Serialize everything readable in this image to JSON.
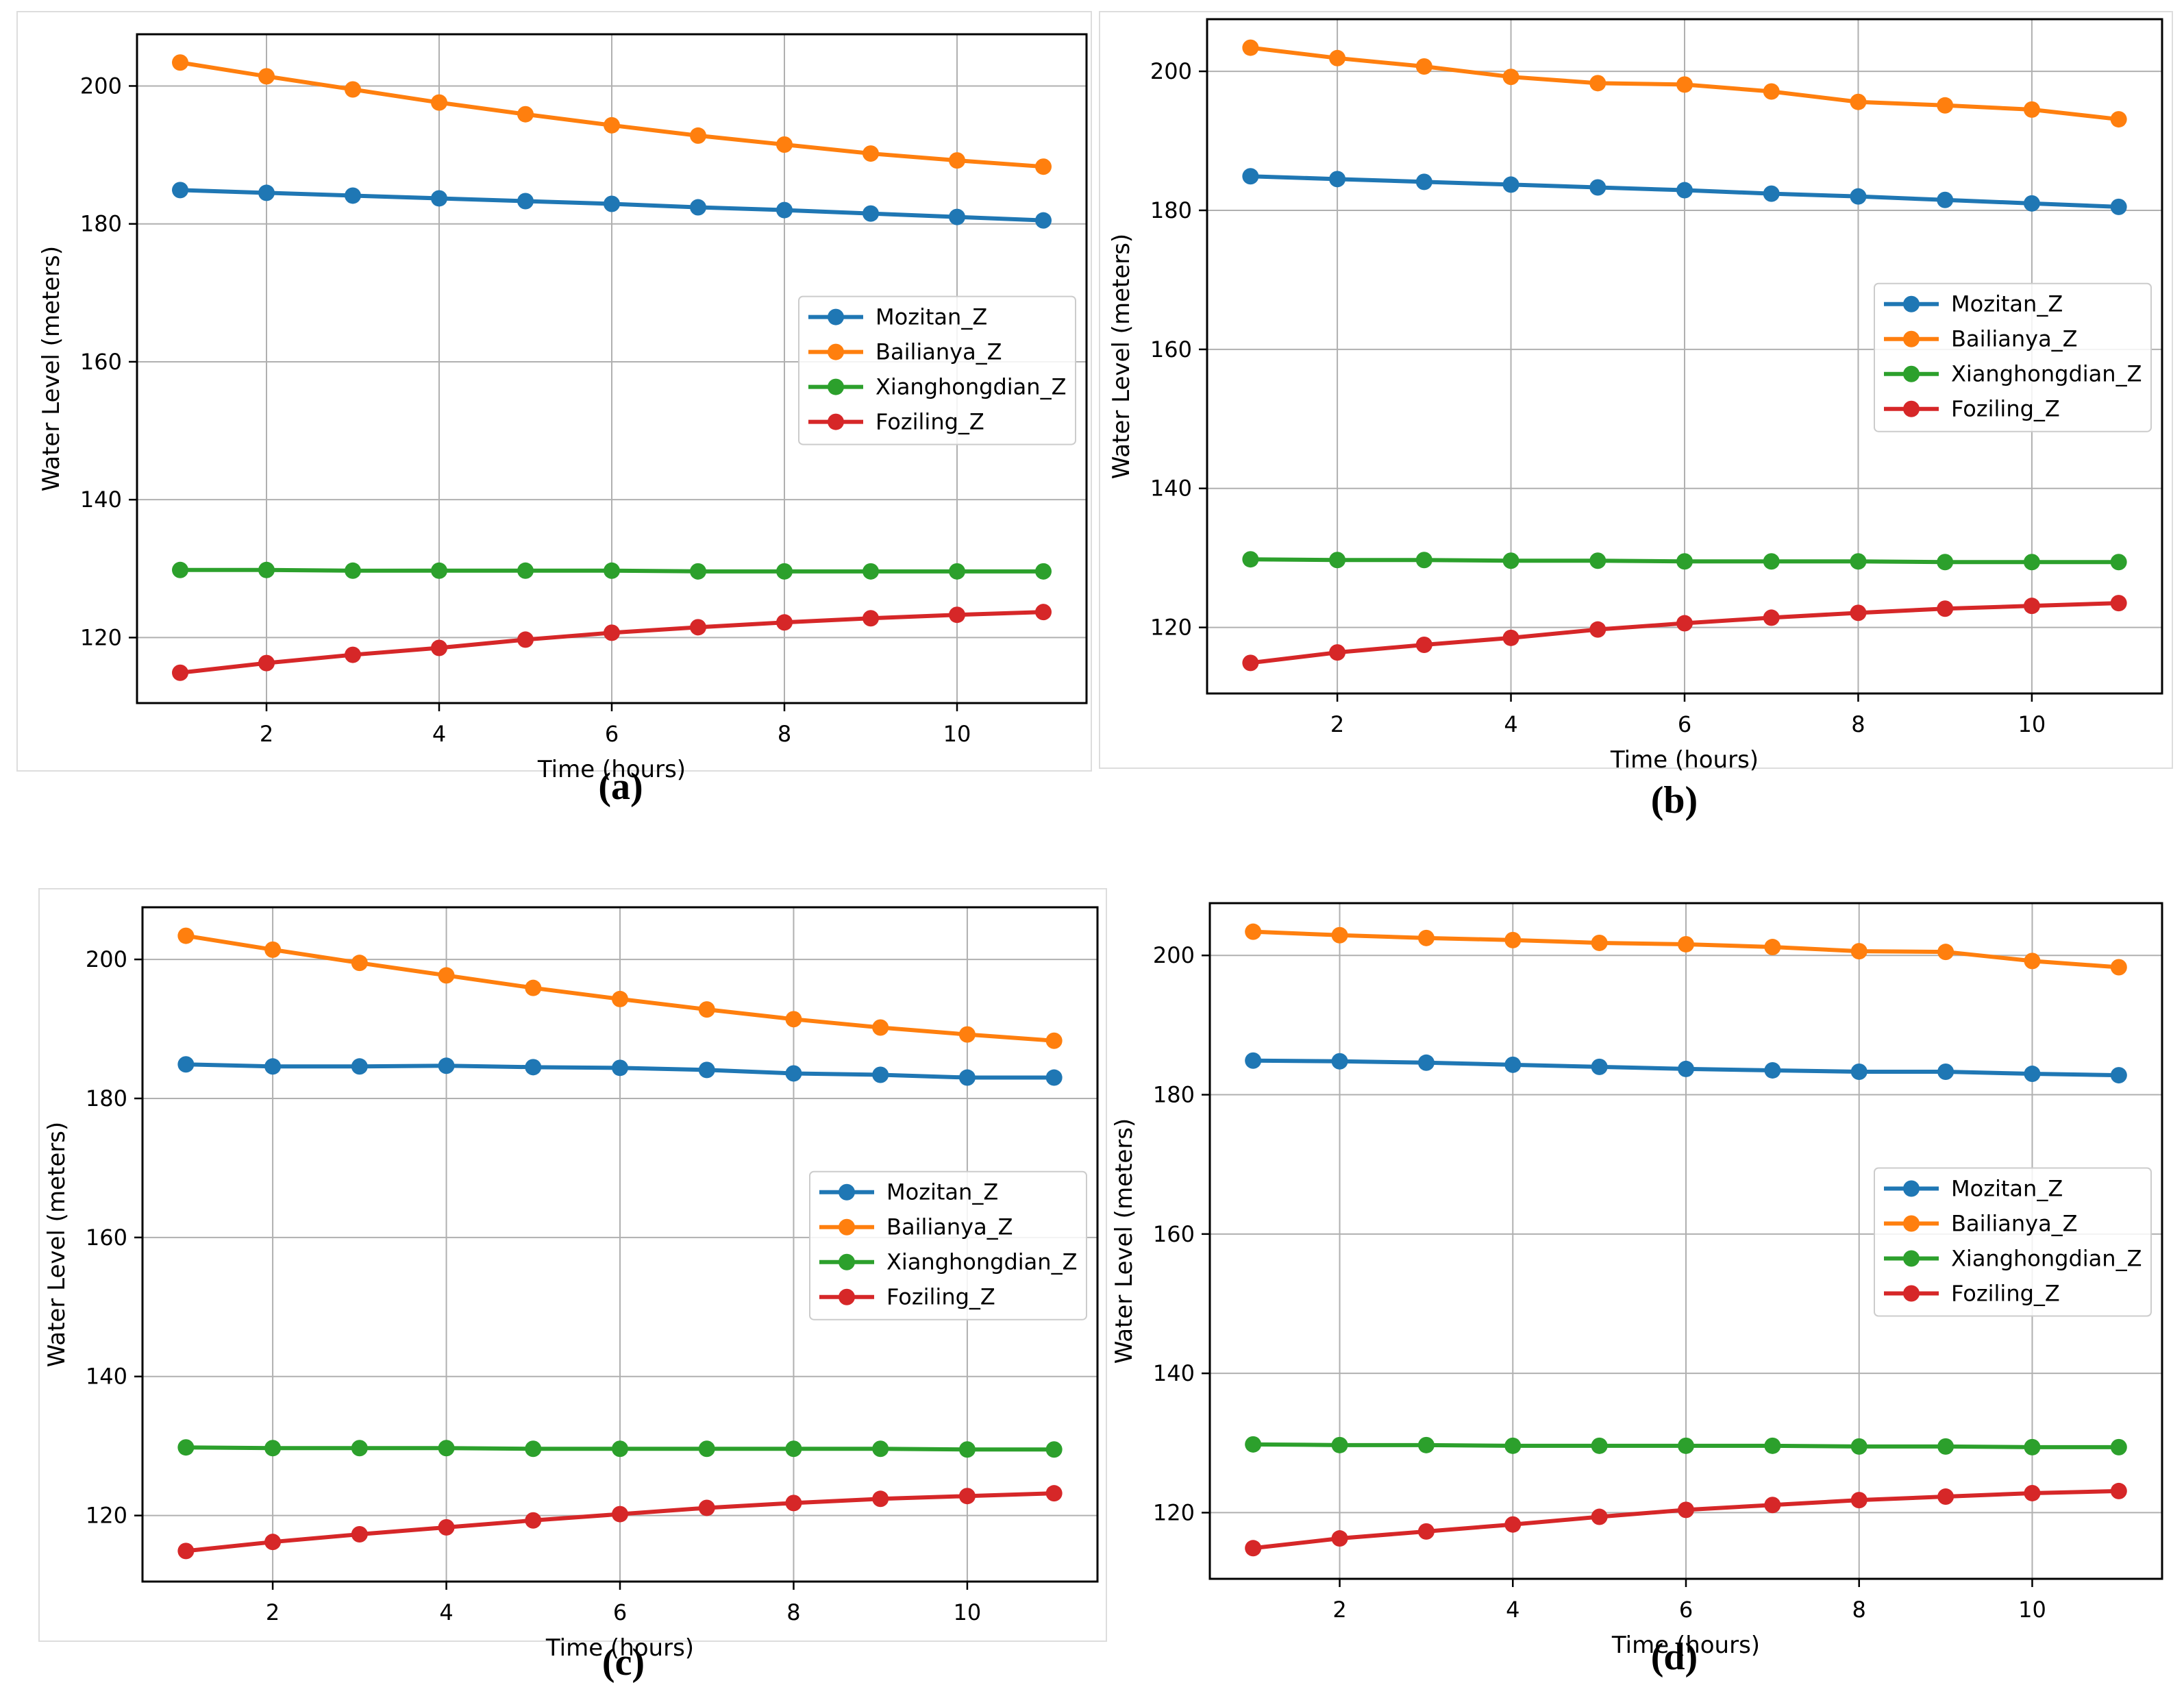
{
  "common": {
    "xlabel": "Time (hours)",
    "ylabel": "Water Level (meters)",
    "x_ticks": [
      2,
      4,
      6,
      8,
      10
    ],
    "y_ticks": [
      120,
      140,
      160,
      180,
      200
    ],
    "series_style": [
      {
        "name": "Mozitan_Z",
        "color": "#1f77b4"
      },
      {
        "name": "Bailianya_Z",
        "color": "#ff7f0e"
      },
      {
        "name": "Xianghongdian_Z",
        "color": "#2ca02c"
      },
      {
        "name": "Foziling_Z",
        "color": "#d62728"
      }
    ]
  },
  "chart_data": [
    {
      "panel": "(a)",
      "type": "line",
      "xlabel": "Time (hours)",
      "ylabel": "Water Level (meters)",
      "xlim": [
        0.5,
        11.5
      ],
      "ylim": [
        110.5,
        207.5
      ],
      "legend": "center-right",
      "grid": true,
      "x": [
        1,
        2,
        3,
        4,
        5,
        6,
        7,
        8,
        9,
        10,
        11
      ],
      "series": [
        {
          "name": "Mozitan_Z",
          "values": [
            184.9,
            184.5,
            184.1,
            183.7,
            183.3,
            182.9,
            182.4,
            182.0,
            181.5,
            181.0,
            180.5
          ]
        },
        {
          "name": "Bailianya_Z",
          "values": [
            203.4,
            201.4,
            199.5,
            197.6,
            195.9,
            194.3,
            192.8,
            191.5,
            190.2,
            189.2,
            188.3
          ]
        },
        {
          "name": "Xianghongdian_Z",
          "values": [
            129.8,
            129.8,
            129.7,
            129.7,
            129.7,
            129.7,
            129.6,
            129.6,
            129.6,
            129.6,
            129.6
          ]
        },
        {
          "name": "Foziling_Z",
          "values": [
            114.9,
            116.3,
            117.5,
            118.5,
            119.7,
            120.7,
            121.5,
            122.2,
            122.8,
            123.3,
            123.7
          ]
        }
      ]
    },
    {
      "panel": "(b)",
      "type": "line",
      "xlabel": "Time (hours)",
      "ylabel": "Water Level (meters)",
      "xlim": [
        0.5,
        11.5
      ],
      "ylim": [
        110.5,
        207.5
      ],
      "legend": "center-right",
      "grid": true,
      "x": [
        1,
        2,
        3,
        4,
        5,
        6,
        7,
        8,
        9,
        10,
        11
      ],
      "series": [
        {
          "name": "Mozitan_Z",
          "values": [
            184.9,
            184.5,
            184.1,
            183.7,
            183.3,
            182.9,
            182.4,
            182.0,
            181.5,
            181.0,
            180.5
          ]
        },
        {
          "name": "Bailianya_Z",
          "values": [
            203.4,
            201.9,
            200.7,
            199.2,
            198.3,
            198.1,
            197.1,
            195.6,
            195.1,
            194.5,
            193.1
          ]
        },
        {
          "name": "Xianghongdian_Z",
          "values": [
            129.8,
            129.7,
            129.7,
            129.6,
            129.6,
            129.5,
            129.5,
            129.5,
            129.4,
            129.4,
            129.4
          ]
        },
        {
          "name": "Foziling_Z",
          "values": [
            114.9,
            116.4,
            117.5,
            118.5,
            119.7,
            120.6,
            121.4,
            122.1,
            122.7,
            123.1,
            123.5
          ]
        }
      ]
    },
    {
      "panel": "(c)",
      "type": "line",
      "xlabel": "Time (hours)",
      "ylabel": "Water Level (meters)",
      "xlim": [
        0.5,
        11.5
      ],
      "ylim": [
        110.5,
        207.5
      ],
      "legend": "center-right",
      "grid": true,
      "x": [
        1,
        2,
        3,
        4,
        5,
        6,
        7,
        8,
        9,
        10,
        11
      ],
      "series": [
        {
          "name": "Mozitan_Z",
          "values": [
            184.9,
            184.6,
            184.6,
            184.7,
            184.5,
            184.4,
            184.1,
            183.6,
            183.4,
            183.0,
            183.0
          ]
        },
        {
          "name": "Bailianya_Z",
          "values": [
            203.4,
            201.4,
            199.5,
            197.7,
            195.9,
            194.3,
            192.8,
            191.4,
            190.2,
            189.2,
            188.3
          ]
        },
        {
          "name": "Xianghongdian_Z",
          "values": [
            129.8,
            129.7,
            129.7,
            129.7,
            129.6,
            129.6,
            129.6,
            129.6,
            129.6,
            129.5,
            129.5
          ]
        },
        {
          "name": "Foziling_Z",
          "values": [
            114.9,
            116.2,
            117.3,
            118.3,
            119.3,
            120.2,
            121.1,
            121.8,
            122.4,
            122.8,
            123.2
          ]
        }
      ]
    },
    {
      "panel": "(d)",
      "type": "line",
      "xlabel": "Time (hours)",
      "ylabel": "Water Level (meters)",
      "xlim": [
        0.5,
        11.5
      ],
      "ylim": [
        110.5,
        207.5
      ],
      "legend": "center-right",
      "grid": true,
      "x": [
        1,
        2,
        3,
        4,
        5,
        6,
        7,
        8,
        9,
        10,
        11
      ],
      "series": [
        {
          "name": "Mozitan_Z",
          "values": [
            184.9,
            184.8,
            184.6,
            184.3,
            184.0,
            183.7,
            183.5,
            183.3,
            183.3,
            183.0,
            182.8
          ]
        },
        {
          "name": "Bailianya_Z",
          "values": [
            203.4,
            202.9,
            202.5,
            202.2,
            201.8,
            201.6,
            201.2,
            200.6,
            200.5,
            199.2,
            198.3
          ]
        },
        {
          "name": "Xianghongdian_Z",
          "values": [
            129.8,
            129.7,
            129.7,
            129.6,
            129.6,
            129.6,
            129.6,
            129.5,
            129.5,
            129.4,
            129.4
          ]
        },
        {
          "name": "Foziling_Z",
          "values": [
            114.9,
            116.3,
            117.3,
            118.3,
            119.4,
            120.4,
            121.1,
            121.8,
            122.3,
            122.8,
            123.1
          ]
        }
      ]
    }
  ]
}
